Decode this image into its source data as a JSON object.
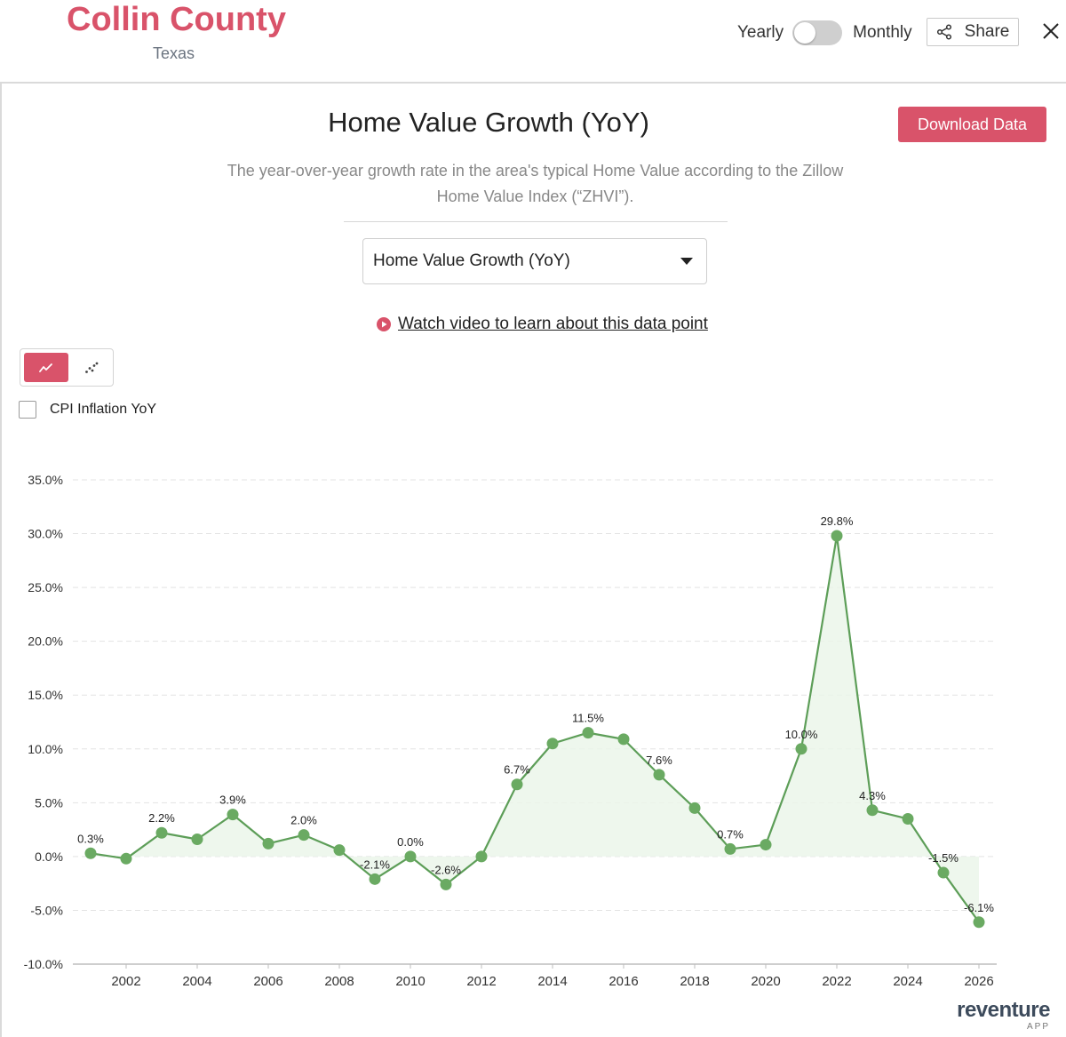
{
  "header": {
    "county": "Collin County",
    "state": "Texas",
    "toggle_left": "Yearly",
    "toggle_right": "Monthly",
    "share_label": "Share",
    "share_icon": "share-icon",
    "close_icon": "close-icon"
  },
  "panel": {
    "title": "Home Value Growth (YoY)",
    "download_label": "Download Data",
    "subtitle_line1": "The year-over-year growth rate in the area's typical Home Value according to the Zillow",
    "subtitle_line2": "Home Value Index (“ZHVI”).",
    "dropdown_value": "Home Value Growth (YoY)",
    "video_link": "Watch video to learn about this data point",
    "cpi_label": "CPI Inflation YoY",
    "cpi_checked": false,
    "chart_mode": "line"
  },
  "brand": {
    "name": "reventure",
    "sub": "APP"
  },
  "colors": {
    "accent": "#d9536a",
    "line": "#5d9e58",
    "point": "#6aaa62",
    "area": "#eaf5e8",
    "grid": "#e3e3e3"
  },
  "chart_data": {
    "type": "line",
    "x": [
      2001,
      2002,
      2003,
      2004,
      2005,
      2006,
      2007,
      2008,
      2009,
      2010,
      2011,
      2012,
      2013,
      2014,
      2015,
      2016,
      2017,
      2018,
      2019,
      2020,
      2021,
      2022,
      2023,
      2024,
      2025,
      2026
    ],
    "values": [
      0.3,
      -0.2,
      2.2,
      1.6,
      3.9,
      1.2,
      2.0,
      0.6,
      -2.1,
      0.0,
      -2.6,
      0.0,
      6.7,
      10.5,
      11.5,
      10.9,
      7.6,
      4.5,
      0.7,
      1.1,
      10.0,
      29.8,
      4.3,
      3.5,
      -1.5,
      -6.1
    ],
    "data_labels": [
      "0.3%",
      "",
      "2.2%",
      "",
      "3.9%",
      "",
      "2.0%",
      "",
      "-2.1%",
      "0.0%",
      "-2.6%",
      "",
      "6.7%",
      "",
      "11.5%",
      "",
      "7.6%",
      "",
      "0.7%",
      "",
      "10.0%",
      "29.8%",
      "4.3%",
      "",
      "-1.5%",
      "-6.1%"
    ],
    "x_ticks": [
      2002,
      2004,
      2006,
      2008,
      2010,
      2012,
      2014,
      2016,
      2018,
      2020,
      2022,
      2024,
      2026
    ],
    "y_ticks": [
      -10,
      -5,
      0,
      5,
      10,
      15,
      20,
      25,
      30,
      35
    ],
    "y_tick_labels": [
      "-10.0%",
      "-5.0%",
      "0.0%",
      "5.0%",
      "10.0%",
      "15.0%",
      "20.0%",
      "25.0%",
      "30.0%",
      "35.0%"
    ],
    "xlim": [
      2000.5,
      2026.5
    ],
    "ylim": [
      -10,
      35
    ],
    "grid": true,
    "grid_style": "dashed-horizontal",
    "legend": "none"
  }
}
